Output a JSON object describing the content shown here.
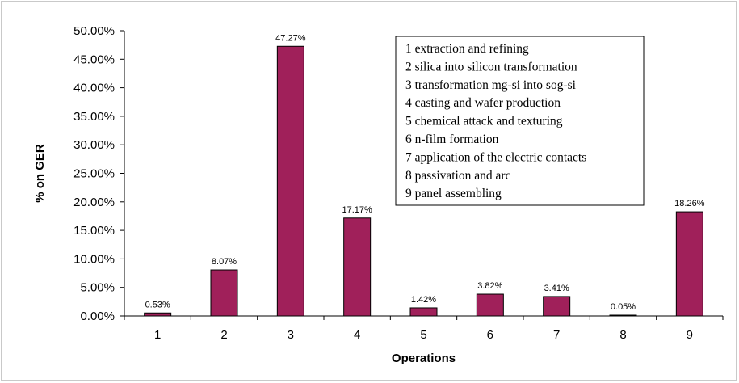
{
  "chart_data": {
    "type": "bar",
    "categories": [
      "1",
      "2",
      "3",
      "4",
      "5",
      "6",
      "7",
      "8",
      "9"
    ],
    "values": [
      0.53,
      8.07,
      47.27,
      17.17,
      1.42,
      3.82,
      3.41,
      0.05,
      18.26
    ],
    "data_labels": [
      "0.53%",
      "8.07%",
      "47.27%",
      "17.17%",
      "1.42%",
      "3.82%",
      "3.41%",
      "0.05%",
      "18.26%"
    ],
    "title": "",
    "xlabel": "Operations",
    "ylabel": "% on GER",
    "ylim": [
      0,
      50
    ],
    "yticks": [
      0,
      5,
      10,
      15,
      20,
      25,
      30,
      35,
      40,
      45,
      50
    ],
    "ytick_labels": [
      "0.00%",
      "5.00%",
      "10.00%",
      "15.00%",
      "20.00%",
      "25.00%",
      "30.00%",
      "35.00%",
      "40.00%",
      "45.00%",
      "50.00%"
    ],
    "grid": false,
    "legend_position": "top-right",
    "legend_entries": [
      "1 extraction and refining",
      "2 silica into silicon transformation",
      "3 transformation mg-si into sog-si",
      "4 casting and wafer production",
      "5 chemical attack and texturing",
      "6 n-film formation",
      "7 application of the electric contacts",
      "8 passivation and arc",
      "9 panel assembling"
    ],
    "bar_color": "#a0205a"
  }
}
